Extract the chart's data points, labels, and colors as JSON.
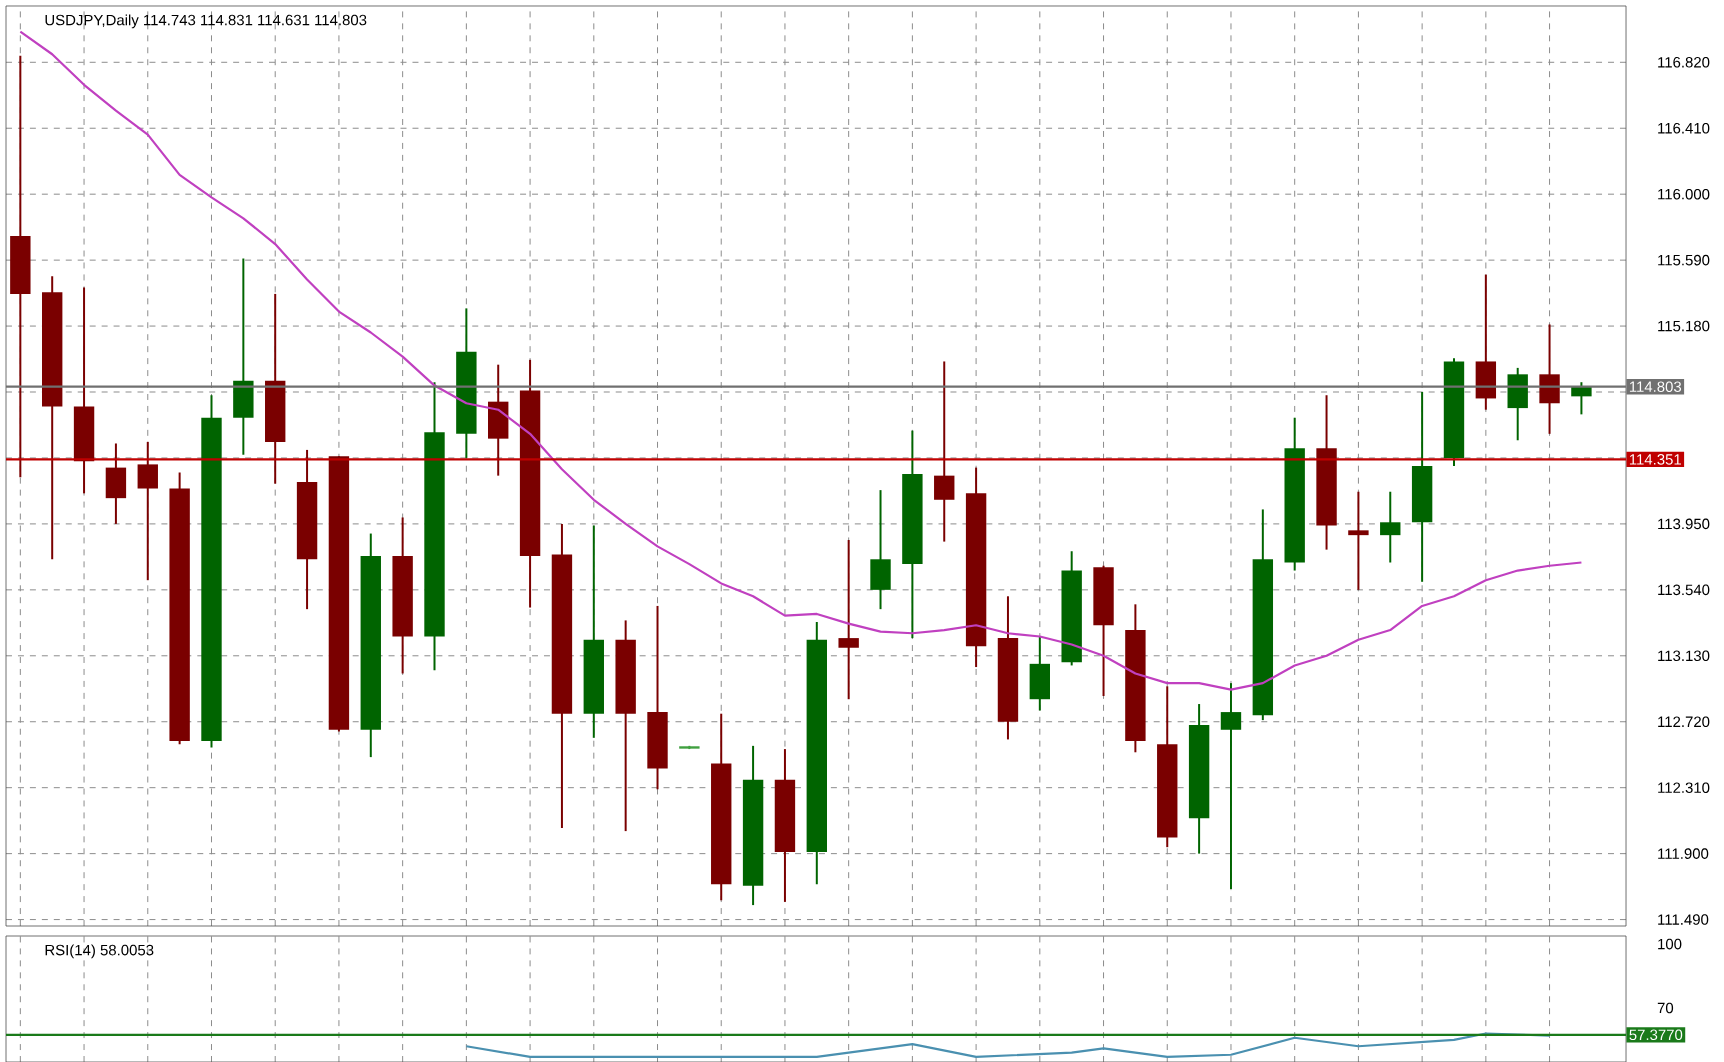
{
  "chart_data": [
    {
      "type": "candlestick",
      "title": "USDJPY,Daily 114.743 114.831 114.631 114.803",
      "categories": [
        null,
        null,
        null,
        null,
        null,
        null,
        null,
        null,
        null,
        null,
        null,
        null,
        null,
        null,
        null,
        null,
        null,
        null,
        null,
        null,
        null,
        null,
        null,
        null,
        null,
        null,
        null,
        null,
        null,
        null,
        null,
        null,
        null,
        null,
        null,
        null,
        null,
        null,
        null,
        null,
        null,
        null,
        null,
        null,
        null,
        null,
        null,
        null,
        null,
        null
      ],
      "ohlc": [
        [
          115.74,
          116.86,
          114.24,
          115.38
        ],
        [
          115.39,
          115.49,
          113.73,
          114.68
        ],
        [
          114.68,
          115.42,
          114.14,
          114.34
        ],
        [
          114.3,
          114.45,
          113.95,
          114.11
        ],
        [
          114.32,
          114.46,
          113.6,
          114.17
        ],
        [
          114.17,
          114.27,
          112.58,
          112.6
        ],
        [
          112.6,
          114.75,
          112.56,
          114.61
        ],
        [
          114.61,
          115.6,
          114.38,
          114.84
        ],
        [
          114.84,
          115.38,
          114.2,
          114.46
        ],
        [
          114.21,
          114.41,
          113.42,
          113.73
        ],
        [
          114.37,
          114.37,
          112.66,
          112.67
        ],
        [
          112.67,
          113.89,
          112.5,
          113.75
        ],
        [
          113.75,
          113.99,
          113.02,
          113.25
        ],
        [
          113.25,
          114.83,
          113.04,
          114.52
        ],
        [
          114.51,
          115.29,
          114.36,
          115.02
        ],
        [
          114.71,
          114.94,
          114.25,
          114.48
        ],
        [
          114.78,
          114.97,
          113.43,
          113.75
        ],
        [
          113.76,
          113.95,
          112.06,
          112.77
        ],
        [
          112.77,
          113.94,
          112.62,
          113.23
        ],
        [
          113.23,
          113.35,
          112.04,
          112.77
        ],
        [
          112.78,
          113.44,
          112.3,
          112.43
        ],
        [
          112.56,
          112.57,
          112.55,
          112.56
        ],
        [
          112.46,
          112.77,
          111.61,
          111.71
        ],
        [
          111.7,
          112.57,
          111.58,
          112.36
        ],
        [
          112.36,
          112.55,
          111.6,
          111.91
        ],
        [
          111.91,
          113.34,
          111.71,
          113.23
        ],
        [
          113.24,
          113.85,
          112.86,
          113.18
        ],
        [
          113.54,
          114.16,
          113.42,
          113.73
        ],
        [
          113.7,
          114.53,
          113.24,
          114.26
        ],
        [
          114.25,
          114.96,
          113.84,
          114.1
        ],
        [
          114.14,
          114.3,
          113.06,
          113.19
        ],
        [
          113.24,
          113.5,
          112.61,
          112.72
        ],
        [
          112.86,
          113.25,
          112.79,
          113.08
        ],
        [
          113.09,
          113.78,
          113.07,
          113.66
        ],
        [
          113.68,
          113.69,
          112.88,
          113.32
        ],
        [
          113.29,
          113.45,
          112.53,
          112.6
        ],
        [
          112.58,
          112.94,
          111.94,
          112.0
        ],
        [
          112.12,
          112.83,
          111.9,
          112.7
        ],
        [
          112.67,
          112.96,
          111.68,
          112.78
        ],
        [
          112.76,
          114.04,
          112.73,
          113.73
        ],
        [
          113.71,
          114.61,
          113.66,
          114.42
        ],
        [
          114.42,
          114.75,
          113.79,
          113.94
        ],
        [
          113.91,
          114.15,
          113.54,
          113.88
        ],
        [
          113.88,
          114.15,
          113.71,
          113.96
        ],
        [
          113.96,
          114.77,
          113.59,
          114.31
        ],
        [
          114.36,
          114.98,
          114.31,
          114.96
        ],
        [
          114.96,
          115.5,
          114.66,
          114.73
        ],
        [
          114.67,
          114.92,
          114.47,
          114.88
        ],
        [
          114.88,
          115.19,
          114.51,
          114.7
        ],
        [
          114.743,
          114.831,
          114.631,
          114.803
        ]
      ],
      "colors": [
        "#7a0000",
        "#7a0000",
        "#7a0000",
        "#7a0000",
        "#7a0000",
        "#7a0000",
        "#006400",
        "#006400",
        "#7a0000",
        "#7a0000",
        "#7a0000",
        "#006400",
        "#7a0000",
        "#006400",
        "#006400",
        "#7a0000",
        "#7a0000",
        "#7a0000",
        "#006400",
        "#7a0000",
        "#7a0000",
        "#40a040",
        "#7a0000",
        "#006400",
        "#7a0000",
        "#006400",
        "#7a0000",
        "#006400",
        "#006400",
        "#7a0000",
        "#7a0000",
        "#7a0000",
        "#006400",
        "#006400",
        "#7a0000",
        "#7a0000",
        "#7a0000",
        "#006400",
        "#006400",
        "#006400",
        "#006400",
        "#7a0000",
        "#7a0000",
        "#006400",
        "#006400",
        "#006400",
        "#7a0000",
        "#006400",
        "#7a0000",
        "#006400"
      ],
      "series": [
        {
          "type": "line",
          "color": "#c040c0",
          "values": [
            117.01,
            116.87,
            116.68,
            116.52,
            116.37,
            116.12,
            115.98,
            115.85,
            115.69,
            115.47,
            115.27,
            115.14,
            114.99,
            114.81,
            114.7,
            114.66,
            114.51,
            114.29,
            114.1,
            113.95,
            113.81,
            113.7,
            113.58,
            113.5,
            113.38,
            113.39,
            113.33,
            113.28,
            113.27,
            113.29,
            113.32,
            113.27,
            113.25,
            113.2,
            113.13,
            113.02,
            112.96,
            112.96,
            112.92,
            112.96,
            113.07,
            113.13,
            113.23,
            113.29,
            113.44,
            113.5,
            113.6,
            113.66,
            113.69,
            113.71
          ]
        }
      ],
      "ylim": [
        111.45,
        117.17
      ],
      "yticks": [
        {
          "value": 116.82,
          "label": "116.820"
        },
        {
          "value": 116.41,
          "label": "116.410"
        },
        {
          "value": 116.0,
          "label": "116.000"
        },
        {
          "value": 115.59,
          "label": "115.590"
        },
        {
          "value": 115.18,
          "label": "115.180"
        },
        {
          "value": 114.77,
          "label": null
        },
        {
          "value": 114.36,
          "label": null
        },
        {
          "value": 113.95,
          "label": "113.950"
        },
        {
          "value": 113.54,
          "label": "113.540"
        },
        {
          "value": 113.13,
          "label": "113.130"
        },
        {
          "value": 112.72,
          "label": "112.720"
        },
        {
          "value": 112.31,
          "label": "112.310"
        },
        {
          "value": 111.9,
          "label": "111.900"
        },
        {
          "value": 111.49,
          "label": "111.490"
        }
      ],
      "ref_lines": [
        {
          "axis": "y",
          "value": 114.803,
          "label": "114.803",
          "color": "#707070"
        },
        {
          "axis": "y",
          "value": 114.351,
          "label": "114.351",
          "color": "#c00000"
        }
      ],
      "grid": true,
      "tick_labels": "y"
    },
    {
      "type": "line",
      "title": "RSI(14) 58.0053",
      "categories": [
        null,
        null,
        null,
        null,
        null,
        null,
        null,
        null,
        null,
        null,
        null,
        null,
        null,
        null,
        null,
        null,
        null,
        null,
        null,
        null,
        null,
        null,
        null,
        null,
        null,
        null,
        null,
        null,
        null,
        null,
        null,
        null,
        null,
        null,
        null,
        null,
        null,
        null,
        null,
        null,
        null,
        null,
        null,
        null,
        null,
        null,
        null,
        null,
        null,
        null
      ],
      "series": [
        {
          "color": "#4a90b0",
          "values": [
            null,
            null,
            null,
            null,
            null,
            null,
            null,
            null,
            null,
            null,
            null,
            null,
            null,
            null,
            52,
            null,
            47,
            null,
            null,
            null,
            null,
            null,
            null,
            null,
            null,
            47,
            null,
            null,
            53,
            null,
            47,
            null,
            null,
            49,
            51,
            null,
            47,
            null,
            48,
            null,
            56,
            null,
            52,
            null,
            null,
            55,
            58,
            null,
            57,
            null
          ]
        }
      ],
      "ylim": [
        44.6,
        103.8
      ],
      "yticks": [
        100,
        70
      ],
      "ref_lines": [
        {
          "axis": "y",
          "value": 57.377,
          "label": "57.3770",
          "color": "#1a7a1a"
        }
      ],
      "grid": "x",
      "tick_labels": "y"
    }
  ]
}
